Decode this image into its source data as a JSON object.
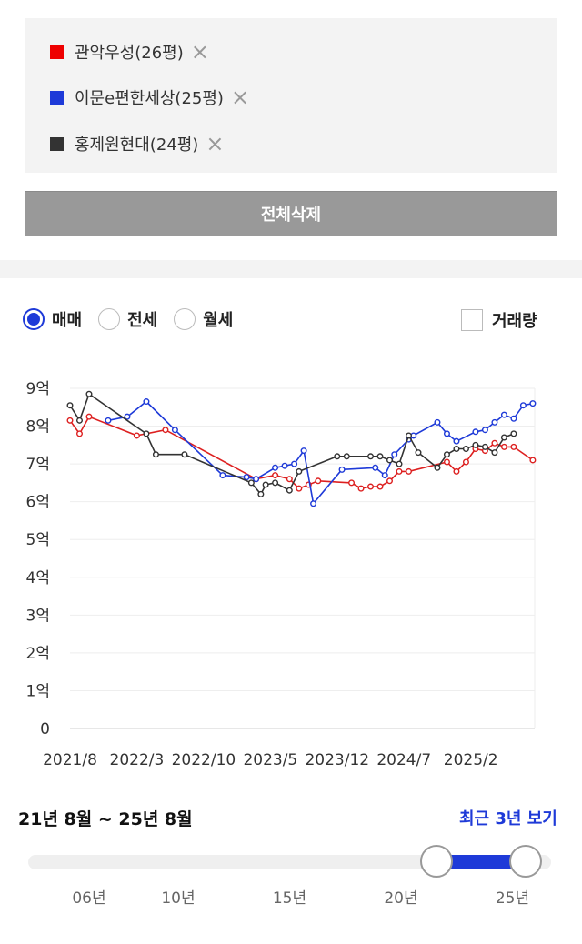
{
  "compare": {
    "items": [
      {
        "label": "관악우성(26평)",
        "color": "#ee0000"
      },
      {
        "label": "이문e편한세상(25평)",
        "color": "#1e3ad8"
      },
      {
        "label": "홍제원현대(24평)",
        "color": "#333333"
      }
    ],
    "remove_icon": "×",
    "delete_all_label": "전체삭제"
  },
  "filters": {
    "trade_types": [
      {
        "label": "매매",
        "selected": true
      },
      {
        "label": "전세",
        "selected": false
      },
      {
        "label": "월세",
        "selected": false
      }
    ],
    "volume_label": "거래량",
    "volume_checked": false
  },
  "period": {
    "label": "21년 8월 ~ 25년 8월",
    "recent_link": "최근 3년 보기",
    "slider": {
      "min_year": 2004,
      "max_year": 2026,
      "start": 2021.58,
      "end": 2025.58
    },
    "year_ticks": [
      {
        "label": "06년",
        "year": 2006
      },
      {
        "label": "10년",
        "year": 2010
      },
      {
        "label": "15년",
        "year": 2015
      },
      {
        "label": "20년",
        "year": 2020
      },
      {
        "label": "25년",
        "year": 2025
      }
    ]
  },
  "chart_data": {
    "type": "line",
    "ylim": [
      0,
      9
    ],
    "y_ticks": [
      {
        "value": 9,
        "label": "9억"
      },
      {
        "value": 8,
        "label": "8억"
      },
      {
        "value": 7,
        "label": "7억"
      },
      {
        "value": 6,
        "label": "6억"
      },
      {
        "value": 5,
        "label": "5억"
      },
      {
        "value": 4,
        "label": "4억"
      },
      {
        "value": 3,
        "label": "3억"
      },
      {
        "value": 2,
        "label": "2억"
      },
      {
        "value": 1,
        "label": "1억"
      },
      {
        "value": 0,
        "label": "0"
      }
    ],
    "x_ticks": [
      {
        "t": 0,
        "label": "2021/8"
      },
      {
        "t": 7,
        "label": "2022/3"
      },
      {
        "t": 14,
        "label": "2022/10"
      },
      {
        "t": 21,
        "label": "2023/5"
      },
      {
        "t": 28,
        "label": "2023/12"
      },
      {
        "t": 35,
        "label": "2024/7"
      },
      {
        "t": 42,
        "label": "2025/2"
      }
    ],
    "x_note": "t = months since 2021/8",
    "grid": true,
    "series": [
      {
        "name": "관악우성(26평)",
        "color": "#dd2020",
        "points": [
          [
            0,
            8.15
          ],
          [
            1,
            7.8
          ],
          [
            2,
            8.25
          ],
          [
            7,
            7.75
          ],
          [
            10,
            7.9
          ],
          [
            19.5,
            6.6
          ],
          [
            21.5,
            6.7
          ],
          [
            23,
            6.6
          ],
          [
            24,
            6.35
          ],
          [
            25,
            6.45
          ],
          [
            26,
            6.55
          ],
          [
            29.5,
            6.5
          ],
          [
            30.5,
            6.35
          ],
          [
            31.5,
            6.4
          ],
          [
            32.5,
            6.4
          ],
          [
            33.5,
            6.55
          ],
          [
            34.5,
            6.8
          ],
          [
            35.5,
            6.8
          ],
          [
            39.5,
            7.05
          ],
          [
            40.5,
            6.8
          ],
          [
            41.5,
            7.05
          ],
          [
            42.5,
            7.4
          ],
          [
            43.5,
            7.35
          ],
          [
            44.5,
            7.55
          ],
          [
            45.5,
            7.45
          ],
          [
            46.5,
            7.45
          ],
          [
            48.5,
            7.1
          ]
        ]
      },
      {
        "name": "이문e편한세상(25평)",
        "color": "#1e3ad8",
        "points": [
          [
            4,
            8.15
          ],
          [
            6,
            8.25
          ],
          [
            8,
            8.65
          ],
          [
            11,
            7.9
          ],
          [
            16,
            6.7
          ],
          [
            18.5,
            6.65
          ],
          [
            19.5,
            6.6
          ],
          [
            21.5,
            6.9
          ],
          [
            22.5,
            6.95
          ],
          [
            23.5,
            7.0
          ],
          [
            24.5,
            7.35
          ],
          [
            25.5,
            5.95
          ],
          [
            28.5,
            6.85
          ],
          [
            32,
            6.9
          ],
          [
            33,
            6.7
          ],
          [
            34,
            7.25
          ],
          [
            35.5,
            7.65
          ],
          [
            36,
            7.75
          ],
          [
            38.5,
            8.1
          ],
          [
            39.5,
            7.8
          ],
          [
            40.5,
            7.6
          ],
          [
            42.5,
            7.85
          ],
          [
            43.5,
            7.9
          ],
          [
            44.5,
            8.1
          ],
          [
            45.5,
            8.3
          ],
          [
            46.5,
            8.2
          ],
          [
            47.5,
            8.55
          ],
          [
            48.5,
            8.6
          ]
        ]
      },
      {
        "name": "홍제원현대(24평)",
        "color": "#333333",
        "points": [
          [
            0,
            8.55
          ],
          [
            1,
            8.15
          ],
          [
            2,
            8.85
          ],
          [
            8,
            7.8
          ],
          [
            9,
            7.25
          ],
          [
            12,
            7.25
          ],
          [
            19,
            6.5
          ],
          [
            20,
            6.2
          ],
          [
            20.5,
            6.45
          ],
          [
            21.5,
            6.5
          ],
          [
            23,
            6.3
          ],
          [
            24,
            6.8
          ],
          [
            28,
            7.2
          ],
          [
            29,
            7.2
          ],
          [
            31.5,
            7.2
          ],
          [
            32.5,
            7.2
          ],
          [
            33.5,
            7.1
          ],
          [
            34.5,
            7.0
          ],
          [
            35.5,
            7.75
          ],
          [
            36.5,
            7.3
          ],
          [
            38.5,
            6.9
          ],
          [
            39.5,
            7.25
          ],
          [
            40.5,
            7.4
          ],
          [
            41.5,
            7.4
          ],
          [
            42.5,
            7.5
          ],
          [
            43.5,
            7.45
          ],
          [
            44.5,
            7.3
          ],
          [
            45.5,
            7.7
          ],
          [
            46.5,
            7.8
          ]
        ]
      }
    ]
  }
}
